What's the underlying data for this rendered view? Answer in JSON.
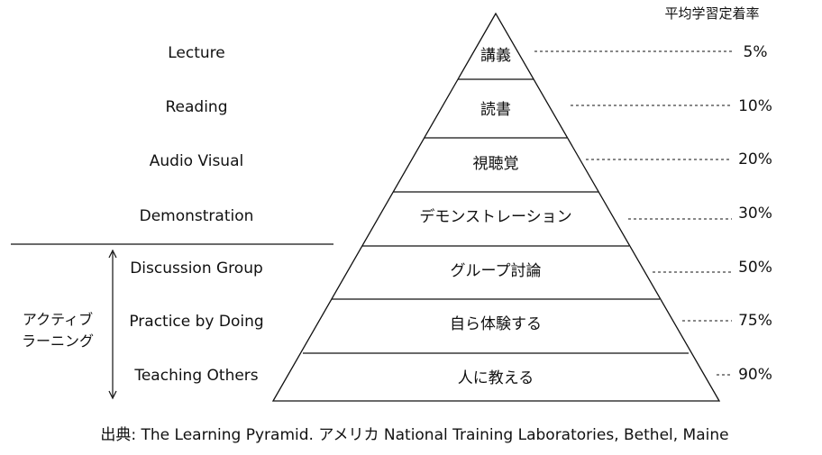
{
  "rate_header": "平均学習定着率",
  "levels": [
    {
      "english": "Lecture",
      "japanese": "講義",
      "rate": "5%"
    },
    {
      "english": "Reading",
      "japanese": "読書",
      "rate": "10%"
    },
    {
      "english": "Audio Visual",
      "japanese": "視聴覚",
      "rate": "20%"
    },
    {
      "english": "Demonstration",
      "japanese": "デモンストレーション",
      "rate": "30%"
    },
    {
      "english": "Discussion Group",
      "japanese": "グループ討論",
      "rate": "50%"
    },
    {
      "english": "Practice by Doing",
      "japanese": "自ら体験する",
      "rate": "75%"
    },
    {
      "english": "Teaching Others",
      "japanese": "人に教える",
      "rate": "90%"
    }
  ],
  "active_learning": {
    "label_line1": "アクティブ",
    "label_line2": "ラーニング"
  },
  "source": "出典: The Learning Pyramid. アメリカ National Training Laboratories, Bethel, Maine"
}
